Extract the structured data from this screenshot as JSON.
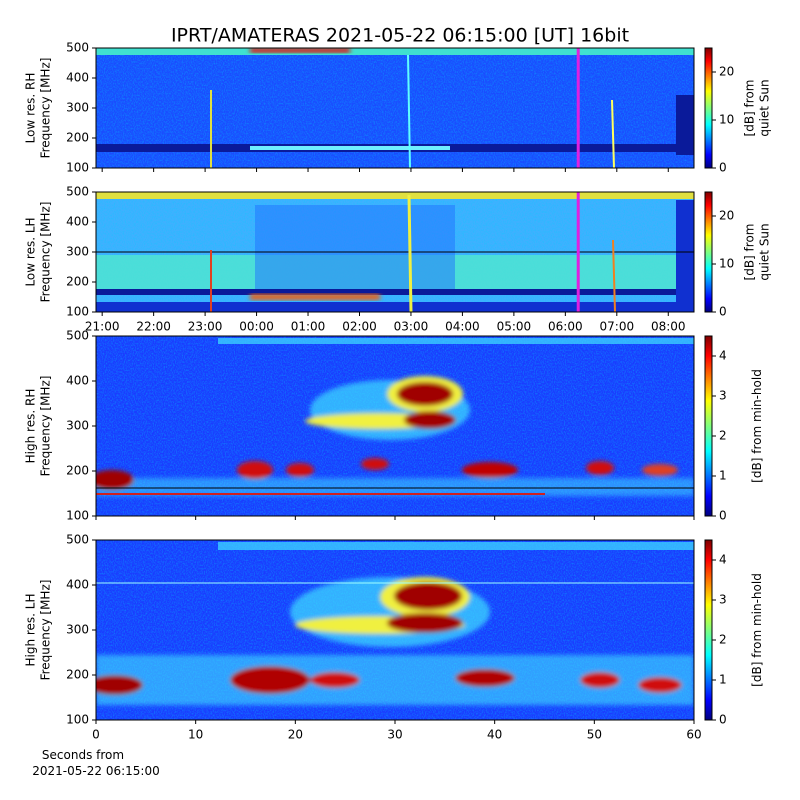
{
  "title": "IPRT/AMATERAS 2021-05-22 06:15:00 [UT]   16bit",
  "xlabel": [
    "Seconds from",
    "2021-05-22 06:15:00"
  ],
  "chart_data": [
    {
      "type": "spectrogram",
      "ylabel": [
        "Low res. RH",
        "Frequency [MHz]"
      ],
      "ylim": [
        100,
        500
      ],
      "yticks": [
        100,
        200,
        300,
        400,
        500
      ],
      "xlim": [
        20.88,
        32.5
      ],
      "cursor": 30.25,
      "colorbar": {
        "colormap": "jet",
        "label": [
          "[dB] from",
          "quiet Sun"
        ],
        "lim": [
          0,
          25
        ],
        "ticks": [
          0,
          10,
          20
        ]
      }
    },
    {
      "type": "spectrogram",
      "ylabel": [
        "Low res. LH",
        "Frequency [MHz]"
      ],
      "ylim": [
        100,
        500
      ],
      "yticks": [
        100,
        200,
        300,
        400,
        500
      ],
      "xlim": [
        20.88,
        32.5
      ],
      "cursor": 30.25,
      "xticks": [
        {
          "value": 21,
          "label": "21:00"
        },
        {
          "value": 22,
          "label": "22:00"
        },
        {
          "value": 23,
          "label": "23:00"
        },
        {
          "value": 24,
          "label": "00:00"
        },
        {
          "value": 25,
          "label": "01:00"
        },
        {
          "value": 26,
          "label": "02:00"
        },
        {
          "value": 27,
          "label": "03:00"
        },
        {
          "value": 28,
          "label": "04:00"
        },
        {
          "value": 29,
          "label": "05:00"
        },
        {
          "value": 30,
          "label": "06:00"
        },
        {
          "value": 31,
          "label": "07:00"
        },
        {
          "value": 32,
          "label": "08:00"
        }
      ],
      "colorbar": {
        "colormap": "jet",
        "label": [
          "[dB] from",
          "quiet Sun"
        ],
        "lim": [
          0,
          25
        ],
        "ticks": [
          0,
          10,
          20
        ]
      }
    },
    {
      "type": "spectrogram",
      "ylabel": [
        "High res. RH",
        "Frequency [MHz]"
      ],
      "ylim": [
        100,
        500
      ],
      "yticks": [
        100,
        200,
        300,
        400,
        500
      ],
      "xlim": [
        0,
        60
      ],
      "colorbar": {
        "colormap": "jet",
        "label": [
          "[dB] from min-hold"
        ],
        "lim": [
          0,
          4.5
        ],
        "ticks": [
          0,
          1,
          2,
          3,
          4
        ]
      }
    },
    {
      "type": "spectrogram",
      "ylabel": [
        "High res. LH",
        "Frequency [MHz]"
      ],
      "ylim": [
        100,
        500
      ],
      "yticks": [
        100,
        200,
        300,
        400,
        500
      ],
      "xlim": [
        0,
        60
      ],
      "xticks": [
        0,
        10,
        20,
        30,
        40,
        50,
        60
      ],
      "colorbar": {
        "colormap": "jet",
        "label": [
          "[dB] from min-hold"
        ],
        "lim": [
          0,
          4.5
        ],
        "ticks": [
          0,
          1,
          2,
          3,
          4
        ]
      }
    }
  ]
}
